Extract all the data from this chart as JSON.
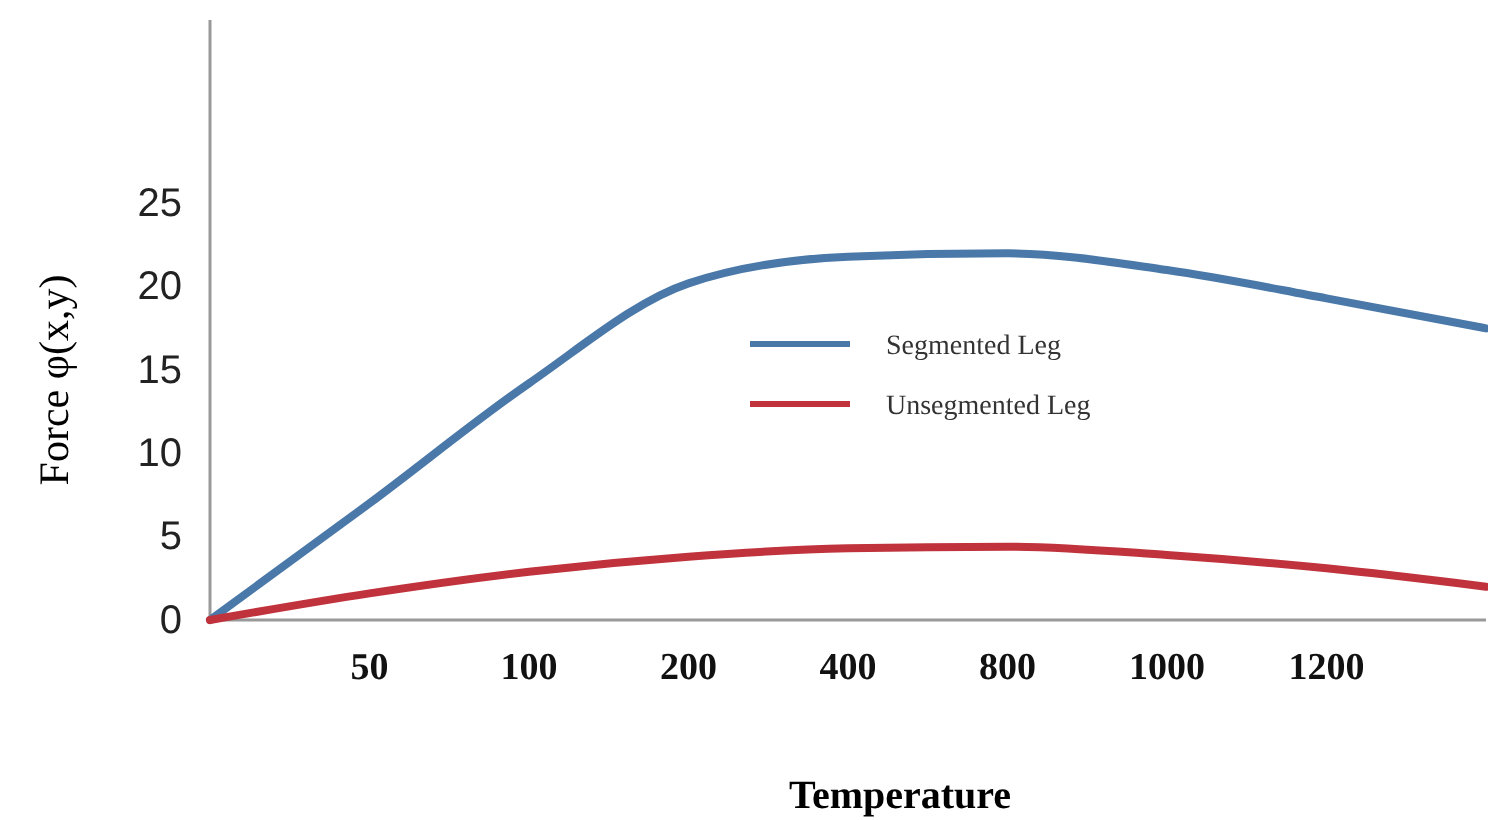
{
  "chart_data": {
    "type": "line",
    "xlabel": "Temperature",
    "ylabel": "Force φ(x,y)",
    "categories": [
      null,
      "50",
      "100",
      "200",
      "400",
      "800",
      "1000",
      "1200",
      null
    ],
    "series": [
      {
        "name": "Segmented Leg",
        "color": "#4a78a8",
        "values": [
          0,
          7.0,
          14.2,
          20.2,
          21.8,
          22.0,
          21.0,
          19.3,
          17.5
        ]
      },
      {
        "name": "Unsegmented Leg",
        "color": "#c0323c",
        "values": [
          0,
          1.6,
          2.9,
          3.8,
          4.3,
          4.4,
          3.9,
          3.1,
          2.0
        ]
      }
    ],
    "ylim": [
      0,
      36
    ],
    "yticks": [
      0,
      5,
      10,
      15,
      20,
      25
    ],
    "legend": "center",
    "grid": false,
    "marker": "none",
    "line_style": "solid"
  }
}
